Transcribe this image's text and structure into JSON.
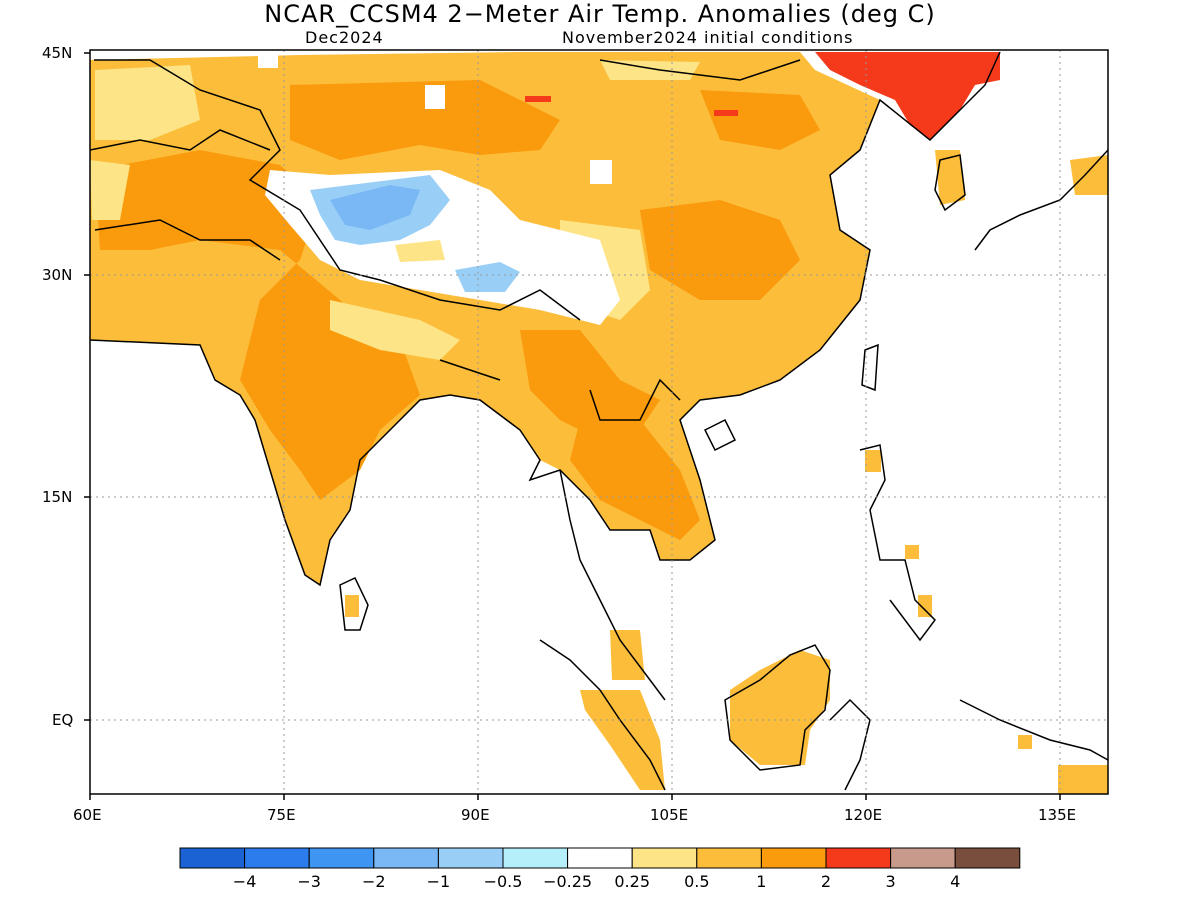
{
  "title": "NCAR_CCSM4 2−Meter Air Temp. Anomalies (deg C)",
  "valid_month": "Dec2024",
  "init_conditions": "November2024 initial conditions",
  "lon_ticks": [
    "60E",
    "75E",
    "90E",
    "105E",
    "120E",
    "135E"
  ],
  "lat_ticks": [
    "45N",
    "30N",
    "15N",
    "EQ"
  ],
  "colorbar": {
    "colors": [
      "#1b63d4",
      "#2c7cee",
      "#3e95f2",
      "#79b8f5",
      "#99cff7",
      "#b4effa",
      "#ffffff",
      "#fde486",
      "#fcbd3a",
      "#fa9a0d",
      "#f5391b",
      "#c89a8b",
      "#7a4e3c"
    ],
    "labels": [
      "−4",
      "−3",
      "−2",
      "−1",
      "−0.5",
      "−0.25",
      "0.25",
      "0.5",
      "1",
      "2",
      "3",
      "4"
    ]
  }
}
